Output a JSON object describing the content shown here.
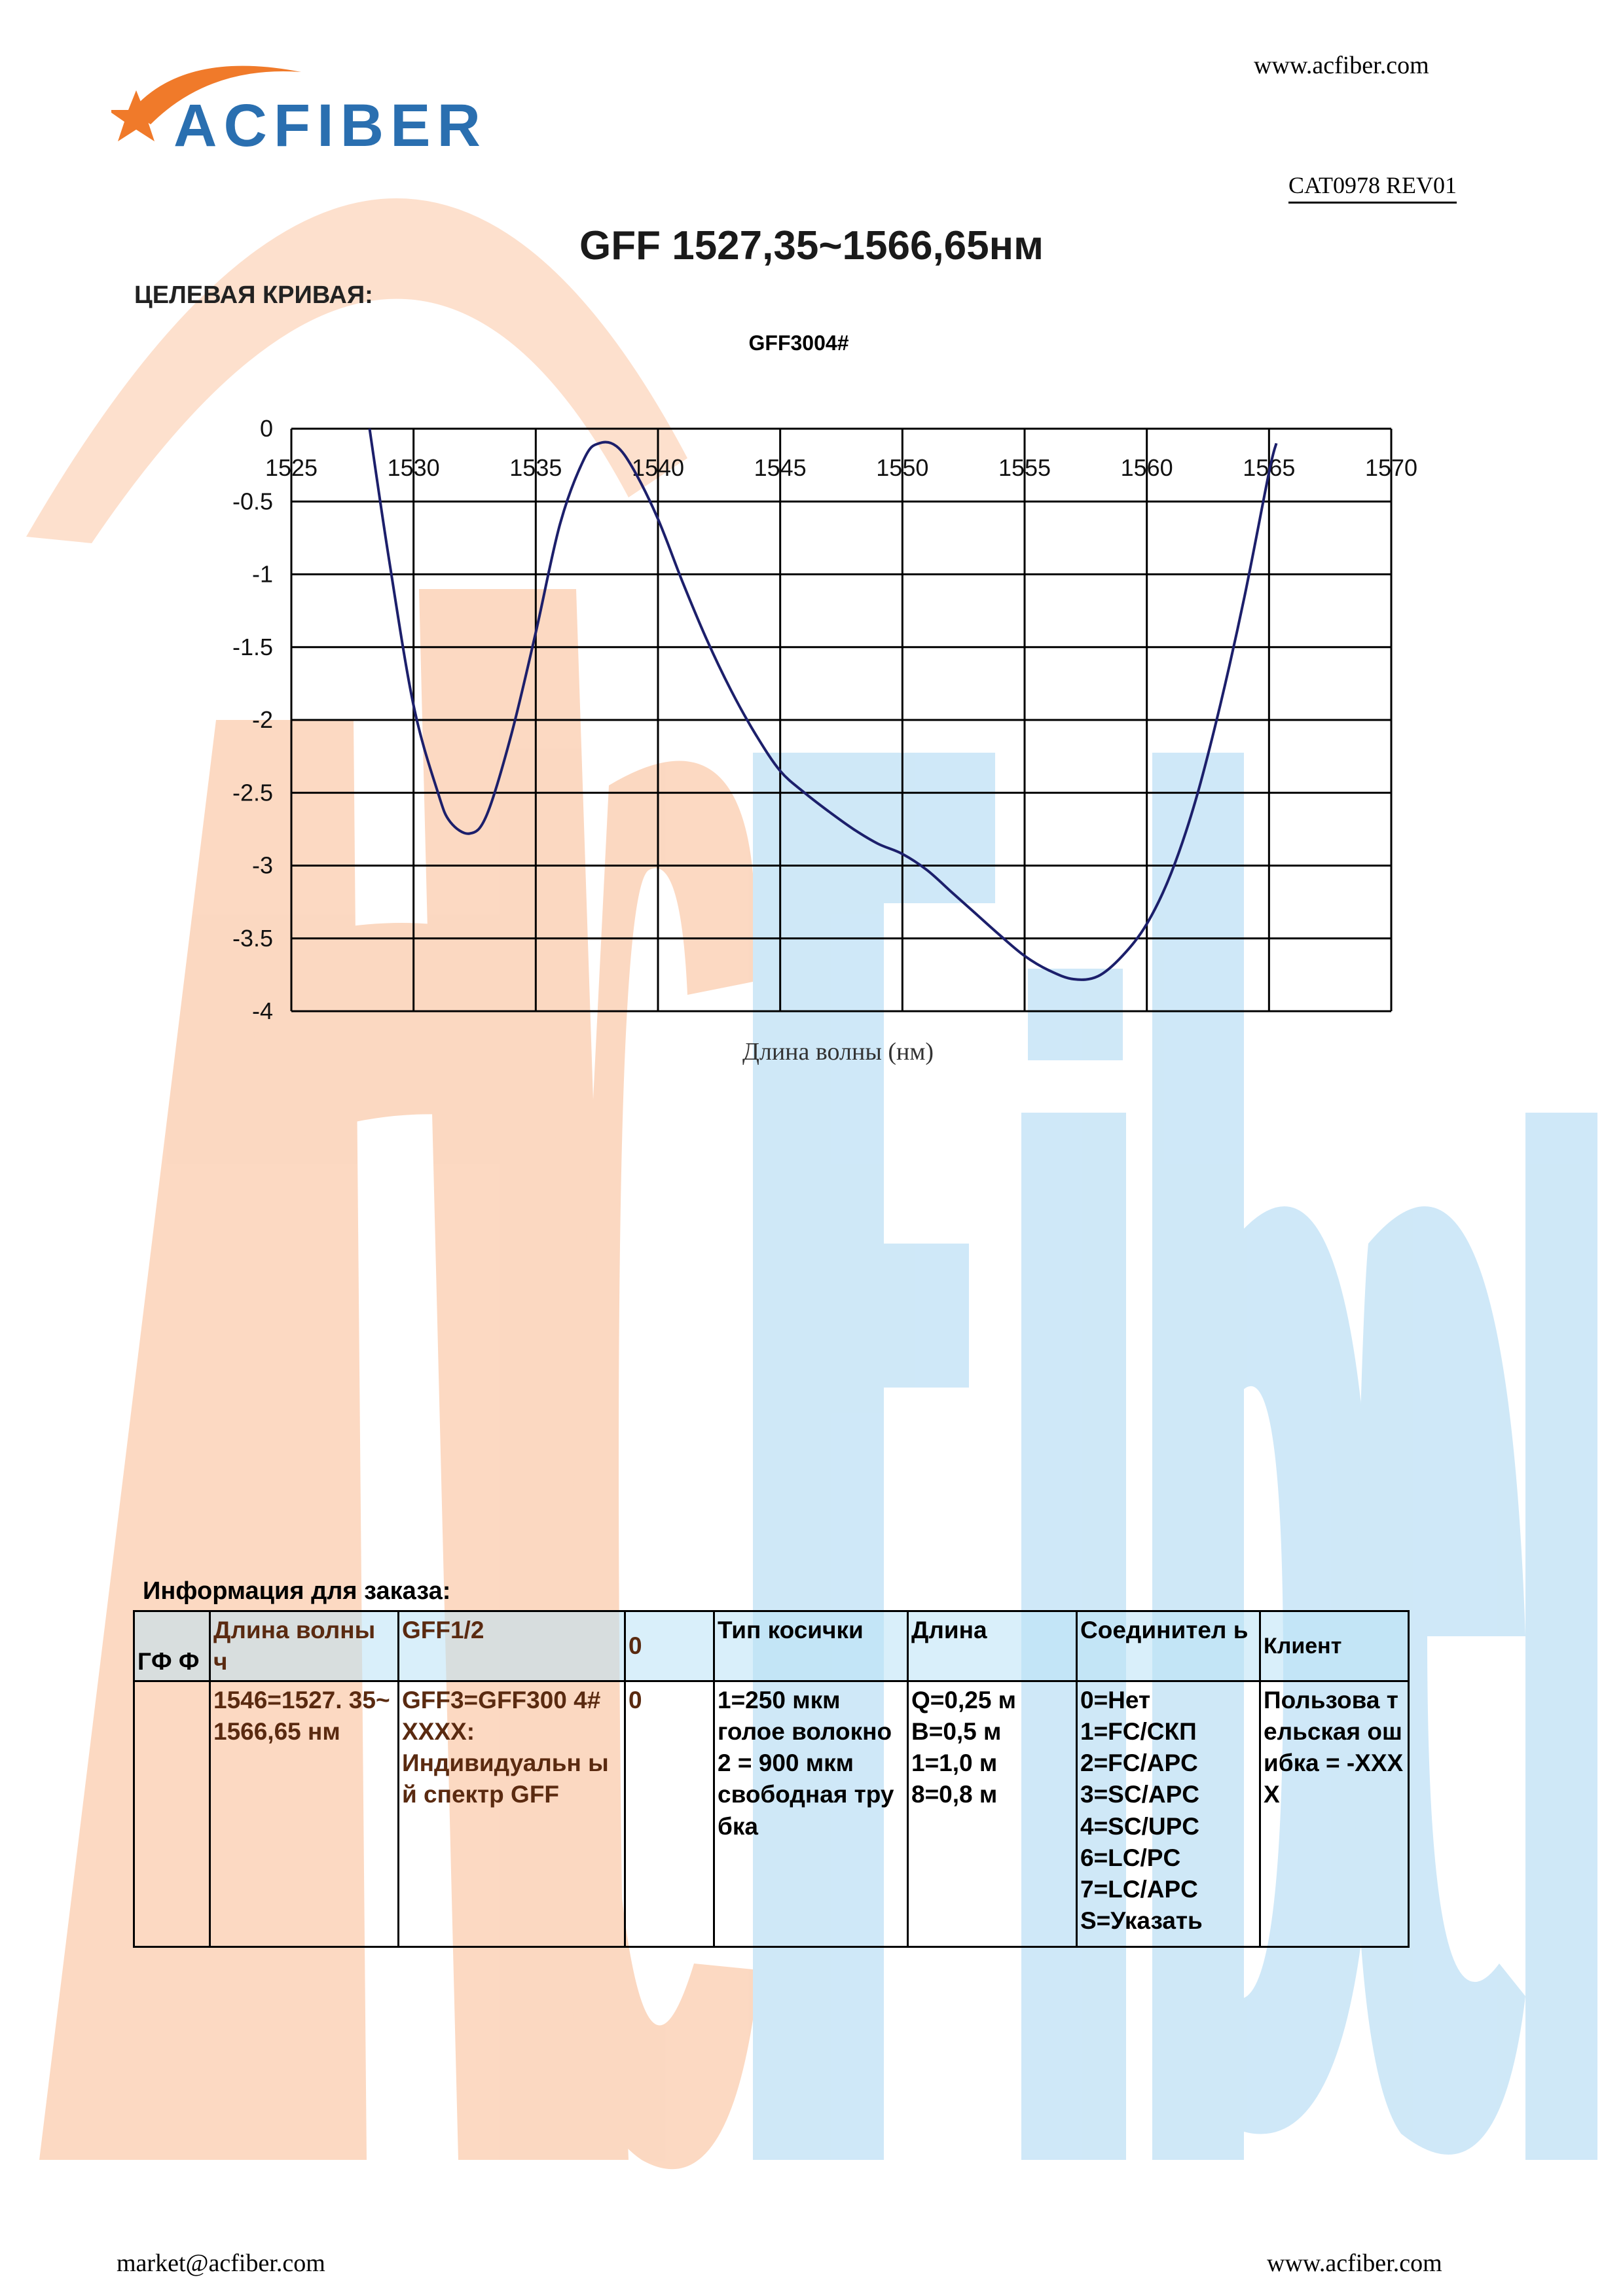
{
  "header": {
    "logo_text": "ACFIBER",
    "website": "www.acfiber.com",
    "doc_code": "CAT0978 REV01"
  },
  "title": "GFF 1527,35~1566,65нм",
  "section_label": "ЦЕЛЕВАЯ КРИВАЯ:",
  "chart_data": {
    "type": "line",
    "title": "GFF3004#",
    "xlabel": "Длина волны (нм)",
    "ylabel": "",
    "xlim": [
      1525,
      1570
    ],
    "ylim": [
      -4,
      0
    ],
    "x_ticks": [
      1525,
      1530,
      1535,
      1540,
      1545,
      1550,
      1555,
      1560,
      1565,
      1570
    ],
    "y_ticks": [
      0,
      -0.5,
      -1,
      -1.5,
      -2,
      -2.5,
      -3,
      -3.5,
      -4
    ],
    "grid": true,
    "series": [
      {
        "color": "#1c1f6b",
        "x": [
          1528.2,
          1529.0,
          1530.0,
          1531.0,
          1531.5,
          1532.3,
          1533.0,
          1534.0,
          1535.0,
          1536.0,
          1537.0,
          1537.6,
          1538.3,
          1539.0,
          1540.0,
          1541.0,
          1542.0,
          1543.0,
          1544.0,
          1545.0,
          1546.0,
          1547.0,
          1548.0,
          1549.0,
          1550.0,
          1551.0,
          1552.0,
          1553.0,
          1554.0,
          1555.0,
          1556.0,
          1557.0,
          1558.0,
          1559.0,
          1560.0,
          1561.0,
          1562.0,
          1563.0,
          1564.0,
          1565.0,
          1565.3
        ],
        "y": [
          0.0,
          -0.9,
          -1.9,
          -2.5,
          -2.7,
          -2.78,
          -2.65,
          -2.1,
          -1.4,
          -0.65,
          -0.2,
          -0.1,
          -0.12,
          -0.28,
          -0.62,
          -1.05,
          -1.45,
          -1.8,
          -2.1,
          -2.35,
          -2.5,
          -2.63,
          -2.75,
          -2.85,
          -2.92,
          -3.03,
          -3.18,
          -3.33,
          -3.48,
          -3.62,
          -3.72,
          -3.78,
          -3.76,
          -3.62,
          -3.4,
          -3.05,
          -2.55,
          -1.9,
          -1.15,
          -0.3,
          -0.1
        ]
      }
    ]
  },
  "order": {
    "title": "Информация для заказа:",
    "headers": [
      "ГФ Ф",
      "Длина волны ч",
      "GFF1/2",
      "0",
      "Тип косички",
      "Длина",
      "Соединител ь",
      "Клиент"
    ],
    "row": {
      "c1": "",
      "c2": "1546=1527. 35~1566,65 нм",
      "c3": [
        "GFF3=GFF300 4#",
        "XXXX:",
        "Индивидуальн ый спектр GFF"
      ],
      "c4": "0",
      "c5": [
        "1=250 мкм",
        "голое волокно",
        "2 = 900 мкм",
        "свободная трубка"
      ],
      "c6": [
        "Q=0,25 м",
        "B=0,5 м",
        "1=1,0 м",
        "8=0,8 м"
      ],
      "c7": [
        "0=Нет",
        "1=FC/СКП",
        "2=FC/APC",
        "3=SC/APC",
        "4=SC/UPC",
        "6=LC/PC",
        "7=LC/APC",
        "S=Указать"
      ],
      "c8": "Пользова тельская ошибка = -XXXX"
    }
  },
  "footer": {
    "email": "market@acfiber.com",
    "website": "www.acfiber.com"
  }
}
